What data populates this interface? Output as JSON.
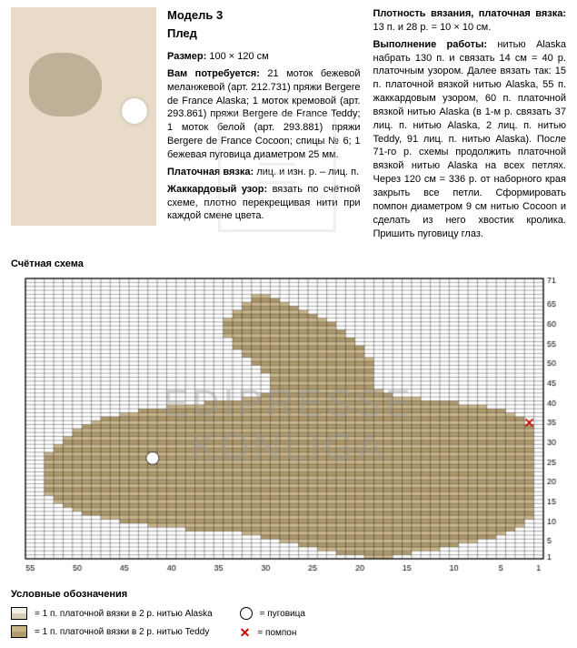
{
  "header": {
    "model": "Модель 3",
    "name": "Плед"
  },
  "col1": {
    "size_label": "Размер:",
    "size": "100 × 120 см",
    "need_label": "Вам потребуется:",
    "need": "21 моток бежевой меланжевой (арт. 212.731) пряжи Bergere de France Alaska; 1 моток кремовой (арт. 293.861) пряжи Bergere de France Teddy; 1 моток белой (арт. 293.881) пряжи Bergere de France Cocoon; спицы № 6; 1 бежевая пуговица диаметром 25 мм.",
    "stitch_label": "Платочная вязка:",
    "stitch": "лиц. и изн. р. – лиц. п.",
    "jac_label": "Жаккардовый узор:",
    "jac": "вязать по счётной схеме, плотно перекрещивая нити при каждой смене цвета."
  },
  "col2": {
    "dens_label": "Плотность вязания, платочная вязка:",
    "dens": "13 п. и 28 р. = 10 × 10 см.",
    "work_label": "Выполнение работы:",
    "work": "нитью Alaska набрать 130 п. и связать 14 см = 40 р. платочным узором. Далее вязать так: 15 п. платочной вязкой нитью Alaska, 55 п. жаккардовым узором, 60 п. платочной вязкой нитью Alaska (в 1-м р. связать 37 лиц. п. нитью Alaska, 2 лиц. п. нитью Teddy, 91 лиц. п. нитью Alaska). После 71-го р. схемы продолжить платочной вязкой нитью Alaska на всех петлях. Через 120 см = 336 р. от наборного края закрыть все петли. Сформировать помпон диаметром 9 см нитью Cocoon и сделать из него хвостик кролика. Пришить пуговицу глаз."
  },
  "chart": {
    "title": "Счётная схема",
    "cols": 55,
    "rows": 71,
    "x_ticks": [
      55,
      50,
      45,
      40,
      35,
      30,
      25,
      20,
      15,
      10,
      5,
      1
    ],
    "y_ticks": [
      1,
      5,
      10,
      15,
      20,
      25,
      30,
      35,
      40,
      45,
      50,
      55,
      60,
      65,
      71
    ],
    "colors": {
      "bg": "#ffffff",
      "grid": "#000000",
      "alaska": "#f5f0e4",
      "teddy": "#c9b58a",
      "teddy2": "#b09a6c",
      "alaska2": "#d8cdb6"
    },
    "eye": {
      "col": 42,
      "row": 26
    },
    "pompon": {
      "col": 2,
      "row": 35
    },
    "bunny_rows": [
      {
        "r": 1,
        "c1": 17,
        "c2": 19
      },
      {
        "r": 2,
        "c1": 15,
        "c2": 22
      },
      {
        "r": 3,
        "c1": 12,
        "c2": 24
      },
      {
        "r": 4,
        "c1": 10,
        "c2": 26
      },
      {
        "r": 5,
        "c1": 8,
        "c2": 28
      },
      {
        "r": 6,
        "c1": 6,
        "c2": 30
      },
      {
        "r": 7,
        "c1": 5,
        "c2": 32
      },
      {
        "r": 8,
        "c1": 4,
        "c2": 38
      },
      {
        "r": 9,
        "c1": 3,
        "c2": 42
      },
      {
        "r": 10,
        "c1": 3,
        "c2": 45
      },
      {
        "r": 11,
        "c1": 2,
        "c2": 47
      },
      {
        "r": 12,
        "c1": 2,
        "c2": 49
      },
      {
        "r": 13,
        "c1": 2,
        "c2": 50
      },
      {
        "r": 14,
        "c1": 2,
        "c2": 51
      },
      {
        "r": 15,
        "c1": 2,
        "c2": 52
      },
      {
        "r": 16,
        "c1": 2,
        "c2": 52
      },
      {
        "r": 17,
        "c1": 2,
        "c2": 53
      },
      {
        "r": 18,
        "c1": 2,
        "c2": 53
      },
      {
        "r": 19,
        "c1": 2,
        "c2": 53
      },
      {
        "r": 20,
        "c1": 2,
        "c2": 53
      },
      {
        "r": 21,
        "c1": 2,
        "c2": 53
      },
      {
        "r": 22,
        "c1": 2,
        "c2": 53
      },
      {
        "r": 23,
        "c1": 2,
        "c2": 53
      },
      {
        "r": 24,
        "c1": 2,
        "c2": 53
      },
      {
        "r": 25,
        "c1": 2,
        "c2": 53
      },
      {
        "r": 26,
        "c1": 2,
        "c2": 53
      },
      {
        "r": 27,
        "c1": 2,
        "c2": 53
      },
      {
        "r": 28,
        "c1": 2,
        "c2": 52
      },
      {
        "r": 29,
        "c1": 2,
        "c2": 52
      },
      {
        "r": 30,
        "c1": 2,
        "c2": 51
      },
      {
        "r": 31,
        "c1": 2,
        "c2": 51
      },
      {
        "r": 32,
        "c1": 2,
        "c2": 50
      },
      {
        "r": 33,
        "c1": 2,
        "c2": 50
      },
      {
        "r": 34,
        "c1": 2,
        "c2": 49
      },
      {
        "r": 35,
        "c1": 3,
        "c2": 48
      },
      {
        "r": 36,
        "c1": 3,
        "c2": 47
      },
      {
        "r": 37,
        "c1": 4,
        "c2": 45
      },
      {
        "r": 38,
        "c1": 5,
        "c2": 43
      },
      {
        "r": 39,
        "c1": 7,
        "c2": 40
      },
      {
        "r": 40,
        "c1": 10,
        "c2": 36
      },
      {
        "r": 41,
        "c1": 14,
        "c2": 32
      },
      {
        "r": 42,
        "c1": 17,
        "c2": 30
      },
      {
        "r": 43,
        "c1": 18,
        "c2": 29
      },
      {
        "r": 44,
        "c1": 19,
        "c2": 29
      },
      {
        "r": 45,
        "c1": 19,
        "c2": 29
      },
      {
        "r": 46,
        "c1": 19,
        "c2": 29
      },
      {
        "r": 47,
        "c1": 19,
        "c2": 29
      },
      {
        "r": 48,
        "c1": 19,
        "c2": 30
      },
      {
        "r": 49,
        "c1": 19,
        "c2": 30
      },
      {
        "r": 50,
        "c1": 19,
        "c2": 31
      },
      {
        "r": 51,
        "c1": 19,
        "c2": 31
      },
      {
        "r": 52,
        "c1": 20,
        "c2": 32
      },
      {
        "r": 53,
        "c1": 20,
        "c2": 32
      },
      {
        "r": 54,
        "c1": 20,
        "c2": 33
      },
      {
        "r": 55,
        "c1": 21,
        "c2": 33
      },
      {
        "r": 56,
        "c1": 21,
        "c2": 33
      },
      {
        "r": 57,
        "c1": 22,
        "c2": 34
      },
      {
        "r": 58,
        "c1": 22,
        "c2": 34
      },
      {
        "r": 59,
        "c1": 23,
        "c2": 34
      },
      {
        "r": 60,
        "c1": 23,
        "c2": 34
      },
      {
        "r": 61,
        "c1": 24,
        "c2": 34
      },
      {
        "r": 62,
        "c1": 25,
        "c2": 33
      },
      {
        "r": 63,
        "c1": 26,
        "c2": 33
      },
      {
        "r": 64,
        "c1": 27,
        "c2": 32
      },
      {
        "r": 65,
        "c1": 28,
        "c2": 32
      },
      {
        "r": 66,
        "c1": 29,
        "c2": 31
      },
      {
        "r": 67,
        "c1": 30,
        "c2": 31
      }
    ]
  },
  "legend": {
    "title": "Условные обозначения",
    "alaska": "= 1 п. платочной вязки в 2 р. нитью Alaska",
    "teddy": "= 1 п. платочной вязки в 2 р. нитью Teddy",
    "button": "= пуговица",
    "pompon": "= помпон"
  },
  "watermark": {
    "l1": "EDIPRESSE",
    "l2": "KONLIGA"
  }
}
